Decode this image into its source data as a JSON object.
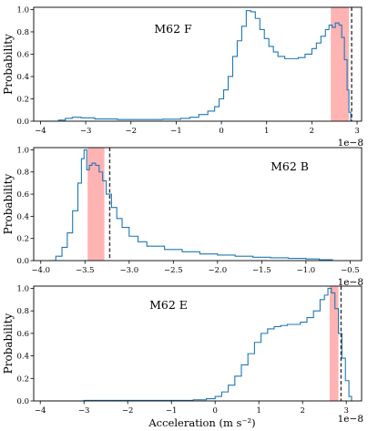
{
  "chart_data": [
    {
      "type": "bar",
      "panel_label": "M62 F",
      "ylabel": "Probability",
      "xlabel": "",
      "offset_text": "1e−8",
      "xlim": [
        -4.15,
        3.1
      ],
      "ylim": [
        0,
        1.02
      ],
      "x_ticks": [
        -4,
        -3,
        -2,
        -1,
        0,
        1,
        2,
        3
      ],
      "x_tick_labels": [
        "−4",
        "−3",
        "−2",
        "−1",
        "0",
        "1",
        "2",
        "3"
      ],
      "y_ticks": [
        0,
        0.2,
        0.4,
        0.6,
        0.8,
        1.0
      ],
      "y_tick_labels": [
        "0.0",
        "0.2",
        "0.4",
        "0.6",
        "0.8",
        "1.0"
      ],
      "shaded_band": [
        2.42,
        2.82
      ],
      "dashed_line": 2.88,
      "points": [
        [
          -4.0,
          0.0
        ],
        [
          -3.6,
          0.01
        ],
        [
          -3.45,
          0.025
        ],
        [
          -3.3,
          0.035
        ],
        [
          -3.1,
          0.03
        ],
        [
          -2.8,
          0.02
        ],
        [
          -2.3,
          0.015
        ],
        [
          -1.8,
          0.015
        ],
        [
          -1.3,
          0.018
        ],
        [
          -0.9,
          0.025
        ],
        [
          -0.7,
          0.035
        ],
        [
          -0.5,
          0.06
        ],
        [
          -0.3,
          0.09
        ],
        [
          -0.15,
          0.13
        ],
        [
          -0.05,
          0.2
        ],
        [
          0.05,
          0.28
        ],
        [
          0.15,
          0.4
        ],
        [
          0.25,
          0.58
        ],
        [
          0.35,
          0.72
        ],
        [
          0.45,
          0.85
        ],
        [
          0.55,
          0.99
        ],
        [
          0.65,
          0.98
        ],
        [
          0.75,
          0.92
        ],
        [
          0.85,
          0.82
        ],
        [
          0.95,
          0.74
        ],
        [
          1.05,
          0.67
        ],
        [
          1.15,
          0.62
        ],
        [
          1.25,
          0.58
        ],
        [
          1.4,
          0.56
        ],
        [
          1.55,
          0.56
        ],
        [
          1.7,
          0.57
        ],
        [
          1.85,
          0.6
        ],
        [
          2.0,
          0.65
        ],
        [
          2.1,
          0.7
        ],
        [
          2.2,
          0.76
        ],
        [
          2.3,
          0.82
        ],
        [
          2.38,
          0.86
        ],
        [
          2.45,
          0.84
        ],
        [
          2.52,
          0.88
        ],
        [
          2.6,
          0.86
        ],
        [
          2.66,
          0.75
        ],
        [
          2.72,
          0.55
        ],
        [
          2.78,
          0.28
        ],
        [
          2.82,
          0.08
        ],
        [
          2.86,
          0.0
        ]
      ]
    },
    {
      "type": "bar",
      "panel_label": "M62 B",
      "ylabel": "Probability",
      "xlabel": "",
      "offset_text": "1e−8",
      "xlim": [
        -4.08,
        -0.37
      ],
      "ylim": [
        0,
        1.02
      ],
      "x_ticks": [
        -4.0,
        -3.5,
        -3.0,
        -2.5,
        -2.0,
        -1.5,
        -1.0,
        -0.5
      ],
      "x_tick_labels": [
        "−4.0",
        "−3.5",
        "−3.0",
        "−2.5",
        "−2.0",
        "−1.5",
        "−1.0",
        "−0.5"
      ],
      "y_ticks": [
        0,
        0.2,
        0.4,
        0.6,
        0.8,
        1.0
      ],
      "y_tick_labels": [
        "0.0",
        "0.2",
        "0.4",
        "0.6",
        "0.8",
        "1.0"
      ],
      "shaded_band": [
        -3.47,
        -3.28
      ],
      "dashed_line": -3.22,
      "points": [
        [
          -3.9,
          0.0
        ],
        [
          -3.83,
          0.04
        ],
        [
          -3.76,
          0.12
        ],
        [
          -3.7,
          0.25
        ],
        [
          -3.64,
          0.45
        ],
        [
          -3.58,
          0.7
        ],
        [
          -3.54,
          0.92
        ],
        [
          -3.51,
          1.0
        ],
        [
          -3.48,
          0.82
        ],
        [
          -3.45,
          0.86
        ],
        [
          -3.42,
          0.88
        ],
        [
          -3.38,
          0.86
        ],
        [
          -3.34,
          0.8
        ],
        [
          -3.3,
          0.72
        ],
        [
          -3.26,
          0.6
        ],
        [
          -3.2,
          0.48
        ],
        [
          -3.14,
          0.38
        ],
        [
          -3.08,
          0.3
        ],
        [
          -3.0,
          0.22
        ],
        [
          -2.9,
          0.17
        ],
        [
          -2.8,
          0.13
        ],
        [
          -2.6,
          0.1
        ],
        [
          -2.4,
          0.08
        ],
        [
          -2.2,
          0.06
        ],
        [
          -2.0,
          0.05
        ],
        [
          -1.8,
          0.04
        ],
        [
          -1.6,
          0.03
        ],
        [
          -1.4,
          0.025
        ],
        [
          -1.2,
          0.02
        ],
        [
          -1.0,
          0.015
        ],
        [
          -0.85,
          0.008
        ],
        [
          -0.7,
          0.0
        ]
      ]
    },
    {
      "type": "bar",
      "panel_label": "M62 E",
      "ylabel": "Probability",
      "xlabel": "Acceleration (m s⁻²)",
      "offset_text": "1e−8",
      "xlim": [
        -4.15,
        3.35
      ],
      "ylim": [
        0,
        1.02
      ],
      "x_ticks": [
        -4,
        -3,
        -2,
        -1,
        0,
        1,
        2,
        3
      ],
      "x_tick_labels": [
        "−4",
        "−3",
        "−2",
        "−1",
        "0",
        "1",
        "2",
        "3"
      ],
      "y_ticks": [
        0,
        0.2,
        0.4,
        0.6,
        0.8,
        1.0
      ],
      "y_tick_labels": [
        "0.0",
        "0.2",
        "0.4",
        "0.6",
        "0.8",
        "1.0"
      ],
      "shaded_band": [
        2.62,
        2.82
      ],
      "dashed_line": 2.88,
      "points": [
        [
          -4.0,
          0.0
        ],
        [
          -3.0,
          0.005
        ],
        [
          -1.5,
          0.005
        ],
        [
          -0.5,
          0.01
        ],
        [
          -0.2,
          0.02
        ],
        [
          0.0,
          0.04
        ],
        [
          0.15,
          0.08
        ],
        [
          0.3,
          0.14
        ],
        [
          0.45,
          0.22
        ],
        [
          0.6,
          0.32
        ],
        [
          0.75,
          0.42
        ],
        [
          0.9,
          0.52
        ],
        [
          1.05,
          0.6
        ],
        [
          1.2,
          0.64
        ],
        [
          1.35,
          0.66
        ],
        [
          1.5,
          0.67
        ],
        [
          1.65,
          0.68
        ],
        [
          1.8,
          0.68
        ],
        [
          1.95,
          0.7
        ],
        [
          2.1,
          0.74
        ],
        [
          2.25,
          0.8
        ],
        [
          2.4,
          0.9
        ],
        [
          2.5,
          0.94
        ],
        [
          2.58,
          1.0
        ],
        [
          2.66,
          0.96
        ],
        [
          2.74,
          0.82
        ],
        [
          2.82,
          0.6
        ],
        [
          2.9,
          0.38
        ],
        [
          2.98,
          0.18
        ],
        [
          3.06,
          0.04
        ],
        [
          3.12,
          0.0
        ]
      ]
    }
  ]
}
